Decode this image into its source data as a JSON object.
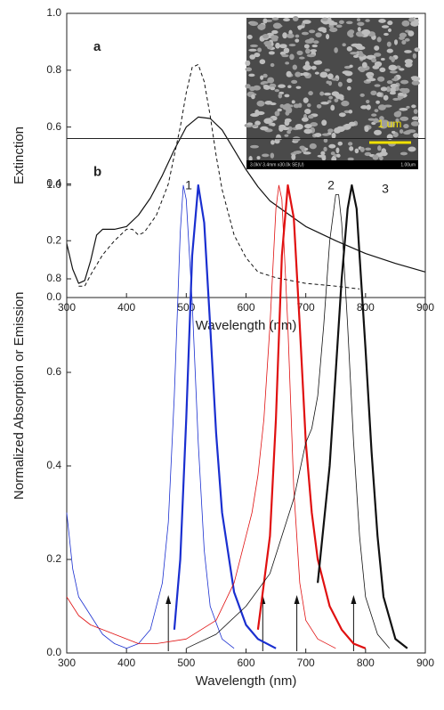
{
  "chart_data": [
    {
      "type": "line",
      "panel_label": "a",
      "xlabel": "Wavelength (nm)",
      "ylabel": "Extinction",
      "inset": {
        "scale_bar": "1 um",
        "caption": "3.0kV 3.4mm x30.0k SE(U)",
        "caption_right": "1.00um"
      },
      "xlim": [
        300,
        900
      ],
      "xticks": [
        300,
        400,
        500,
        600,
        700,
        800,
        900
      ],
      "ylim": [
        0,
        1
      ],
      "yticks": [
        {
          "value": 0,
          "label": "0.0"
        },
        {
          "value": 0.2,
          "label": "0.2"
        },
        {
          "value": 0.4,
          "label": "0.4"
        },
        {
          "value": 0.6,
          "label": "0.6"
        },
        {
          "value": 0.8,
          "label": "0.8"
        },
        {
          "value": 1,
          "label": "1.0"
        }
      ],
      "series": [
        {
          "color": "#111111",
          "style": "solid",
          "width": 1.2,
          "x": [
            300,
            310,
            320,
            330,
            340,
            350,
            360,
            380,
            400,
            420,
            440,
            460,
            480,
            500,
            520,
            540,
            560,
            580,
            600,
            620,
            640,
            660,
            680,
            700,
            750,
            800,
            850,
            900
          ],
          "values": [
            0.19,
            0.1,
            0.05,
            0.06,
            0.13,
            0.22,
            0.24,
            0.24,
            0.25,
            0.29,
            0.35,
            0.43,
            0.52,
            0.6,
            0.635,
            0.63,
            0.59,
            0.52,
            0.45,
            0.39,
            0.34,
            0.31,
            0.28,
            0.25,
            0.2,
            0.155,
            0.12,
            0.09
          ]
        },
        {
          "color": "#111111",
          "style": "dashed",
          "width": 1,
          "x": [
            320,
            330,
            340,
            360,
            380,
            400,
            410,
            420,
            430,
            450,
            470,
            490,
            500,
            510,
            520,
            530,
            540,
            550,
            560,
            580,
            600,
            620,
            650,
            700,
            750,
            790
          ],
          "values": [
            0.04,
            0.04,
            0.08,
            0.15,
            0.2,
            0.24,
            0.24,
            0.22,
            0.23,
            0.29,
            0.4,
            0.6,
            0.72,
            0.81,
            0.82,
            0.76,
            0.64,
            0.5,
            0.38,
            0.22,
            0.14,
            0.09,
            0.07,
            0.05,
            0.04,
            0.03
          ]
        }
      ]
    },
    {
      "type": "line",
      "panel_label": "b",
      "xlabel": "Wavelength (nm)",
      "ylabel": "Normalized Absorption or Emission",
      "peak_labels": [
        "1",
        "2",
        "3"
      ],
      "excitation_arrows": [
        470,
        628,
        685,
        780
      ],
      "xlim": [
        300,
        900
      ],
      "xticks": [
        300,
        400,
        500,
        600,
        700,
        800,
        900
      ],
      "ylim": [
        0,
        1.1
      ],
      "yticks": [
        {
          "value": 0,
          "label": "0.0"
        },
        {
          "value": 0.2,
          "label": "0.2"
        },
        {
          "value": 0.4,
          "label": "0.4"
        },
        {
          "value": 0.6,
          "label": "0.6"
        },
        {
          "value": 0.8,
          "label": "0.8"
        },
        {
          "value": 1,
          "label": "1.0"
        }
      ],
      "series": [
        {
          "color": "#1a2fd0",
          "style": "solid",
          "width": 0.8,
          "x": [
            300,
            310,
            320,
            330,
            340,
            350,
            360,
            380,
            400,
            420,
            440,
            460,
            470,
            480,
            490,
            495,
            500,
            510,
            520,
            530,
            540,
            560,
            580
          ],
          "values": [
            0.3,
            0.18,
            0.12,
            0.1,
            0.08,
            0.06,
            0.04,
            0.02,
            0.01,
            0.02,
            0.05,
            0.15,
            0.28,
            0.55,
            0.9,
            1.0,
            0.97,
            0.75,
            0.45,
            0.22,
            0.1,
            0.03,
            0.01
          ]
        },
        {
          "color": "#1a2fd0",
          "style": "solid",
          "width": 2.2,
          "x": [
            480,
            490,
            500,
            510,
            520,
            530,
            540,
            550,
            560,
            580,
            600,
            620,
            650
          ],
          "values": [
            0.05,
            0.2,
            0.5,
            0.85,
            1.0,
            0.92,
            0.7,
            0.47,
            0.3,
            0.13,
            0.06,
            0.03,
            0.01
          ]
        },
        {
          "color": "#e01010",
          "style": "solid",
          "width": 0.8,
          "x": [
            300,
            320,
            340,
            360,
            380,
            400,
            420,
            450,
            500,
            550,
            580,
            600,
            610,
            620,
            630,
            640,
            650,
            655,
            660,
            670,
            680,
            690,
            700,
            720,
            750
          ],
          "values": [
            0.12,
            0.08,
            0.06,
            0.05,
            0.04,
            0.03,
            0.02,
            0.02,
            0.03,
            0.07,
            0.15,
            0.25,
            0.3,
            0.38,
            0.5,
            0.7,
            0.95,
            1.0,
            0.97,
            0.7,
            0.35,
            0.15,
            0.07,
            0.03,
            0.01
          ]
        },
        {
          "color": "#e01010",
          "style": "solid",
          "width": 2.2,
          "x": [
            620,
            640,
            650,
            660,
            670,
            680,
            690,
            700,
            710,
            720,
            740,
            760,
            780,
            800
          ],
          "values": [
            0.05,
            0.25,
            0.5,
            0.85,
            1.0,
            0.93,
            0.7,
            0.45,
            0.3,
            0.2,
            0.1,
            0.05,
            0.02,
            0.01
          ]
        },
        {
          "color": "#111111",
          "style": "solid",
          "width": 0.8,
          "x": [
            500,
            550,
            600,
            640,
            660,
            680,
            700,
            710,
            720,
            730,
            740,
            750,
            755,
            760,
            770,
            780,
            790,
            800,
            820,
            840
          ],
          "values": [
            0.01,
            0.04,
            0.1,
            0.17,
            0.25,
            0.33,
            0.45,
            0.48,
            0.55,
            0.7,
            0.88,
            0.98,
            0.98,
            0.92,
            0.7,
            0.45,
            0.25,
            0.12,
            0.04,
            0.01
          ]
        },
        {
          "color": "#111111",
          "style": "solid",
          "width": 2.2,
          "x": [
            720,
            740,
            750,
            760,
            770,
            777,
            785,
            790,
            800,
            810,
            820,
            830,
            850,
            870
          ],
          "values": [
            0.15,
            0.4,
            0.6,
            0.8,
            0.95,
            1.0,
            0.95,
            0.85,
            0.65,
            0.43,
            0.25,
            0.12,
            0.03,
            0.01
          ]
        }
      ]
    }
  ]
}
